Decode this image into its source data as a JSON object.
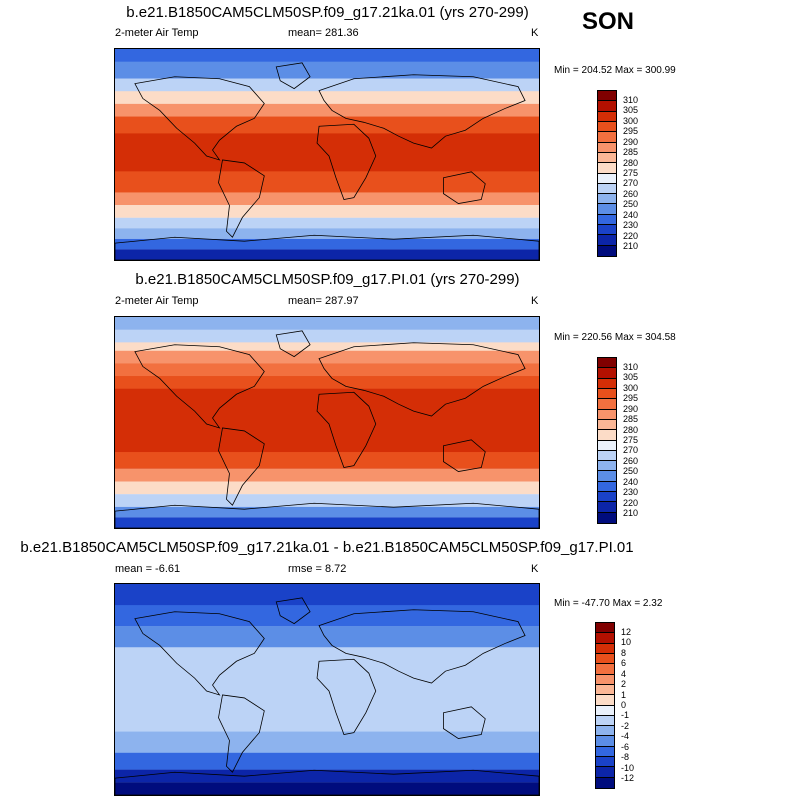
{
  "season": "SON",
  "panels": [
    {
      "title": "b.e21.B1850CAM5CLM50SP.f09_g17.21ka.01 (yrs 270-299)",
      "left_label": "2-meter Air Temp",
      "center_label": "mean= 281.36",
      "units": "K",
      "minmax": "Min = 204.52 Max = 300.99",
      "colorbar_labels": [
        "310",
        "305",
        "300",
        "295",
        "290",
        "285",
        "280",
        "275",
        "270",
        "260",
        "250",
        "240",
        "230",
        "220",
        "210"
      ],
      "colorbar_colors": [
        "#800000",
        "#b31000",
        "#d42e06",
        "#e8501c",
        "#f2703f",
        "#f7936b",
        "#fbb796",
        "#fcdcc7",
        "#eaf1fb",
        "#bcd3f6",
        "#8db3ee",
        "#5c8ee6",
        "#3367e0",
        "#1a42c8",
        "#0c25a8",
        "#000c7d"
      ]
    },
    {
      "title": "b.e21.B1850CAM5CLM50SP.f09_g17.PI.01 (yrs 270-299)",
      "left_label": "2-meter Air Temp",
      "center_label": "mean= 287.97",
      "units": "K",
      "minmax": "Min = 220.56 Max = 304.58",
      "colorbar_labels": [
        "310",
        "305",
        "300",
        "295",
        "290",
        "285",
        "280",
        "275",
        "270",
        "260",
        "250",
        "240",
        "230",
        "220",
        "210"
      ],
      "colorbar_colors": [
        "#800000",
        "#b31000",
        "#d42e06",
        "#e8501c",
        "#f2703f",
        "#f7936b",
        "#fbb796",
        "#fcdcc7",
        "#eaf1fb",
        "#bcd3f6",
        "#8db3ee",
        "#5c8ee6",
        "#3367e0",
        "#1a42c8",
        "#0c25a8",
        "#000c7d"
      ]
    },
    {
      "title": "b.e21.B1850CAM5CLM50SP.f09_g17.21ka.01 - b.e21.B1850CAM5CLM50SP.f09_g17.PI.01",
      "left_label": "mean =  -6.61",
      "center_label": "rmse =   8.72",
      "units": "K",
      "minmax": "Min = -47.70 Max =   2.32",
      "colorbar_labels": [
        "12",
        "10",
        "8",
        "6",
        "4",
        "2",
        "1",
        "0",
        "-1",
        "-2",
        "-4",
        "-6",
        "-8",
        "-10",
        "-12"
      ],
      "colorbar_colors": [
        "#800000",
        "#b31000",
        "#d42e06",
        "#e8501c",
        "#f2703f",
        "#f7936b",
        "#fbb796",
        "#fcdcc7",
        "#eaf1fb",
        "#bcd3f6",
        "#8db3ee",
        "#5c8ee6",
        "#3367e0",
        "#1a42c8",
        "#0c25a8",
        "#000c7d"
      ]
    }
  ]
}
